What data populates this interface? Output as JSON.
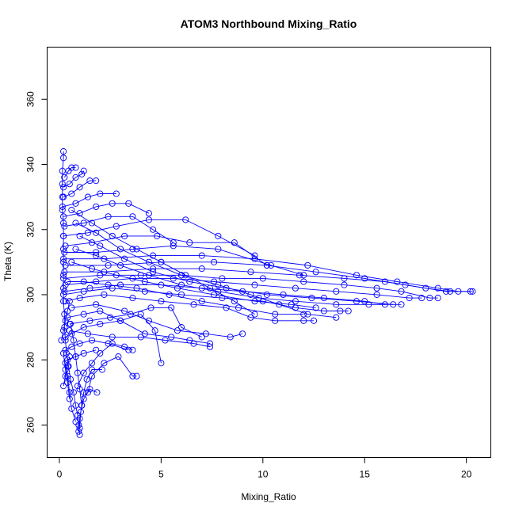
{
  "chart_data": {
    "type": "scatter",
    "title": "ATOM3 Northbound Mixing_Ratio",
    "xlabel": "Mixing_Ratio",
    "ylabel": "Theta (K)",
    "xlim": [
      -0.6,
      21.2
    ],
    "ylim": [
      250,
      376
    ],
    "x_ticks": [
      0,
      5,
      10,
      15,
      20
    ],
    "y_ticks": [
      260,
      280,
      300,
      320,
      340,
      360
    ],
    "x_tick_labels": [
      "0",
      "5",
      "10",
      "15",
      "20"
    ],
    "y_tick_labels": [
      "260",
      "280",
      "300",
      "320",
      "340",
      "360"
    ],
    "grid": false,
    "series_color": "#0000ff",
    "marker": "open-circle",
    "profiles": [
      [
        [
          1.0,
          257
        ],
        [
          0.95,
          260
        ],
        [
          0.9,
          263
        ],
        [
          0.8,
          266
        ],
        [
          0.7,
          270
        ],
        [
          0.55,
          274
        ],
        [
          0.45,
          278
        ],
        [
          0.35,
          282
        ],
        [
          0.3,
          286
        ],
        [
          0.25,
          290
        ],
        [
          0.25,
          294
        ],
        [
          0.2,
          298
        ],
        [
          0.2,
          302
        ],
        [
          0.2,
          306
        ],
        [
          0.2,
          310
        ],
        [
          0.2,
          314
        ],
        [
          0.2,
          318
        ],
        [
          0.2,
          322
        ],
        [
          0.15,
          326
        ],
        [
          0.15,
          330
        ],
        [
          0.15,
          334
        ],
        [
          0.15,
          338
        ],
        [
          0.2,
          342
        ],
        [
          0.2,
          344
        ]
      ],
      [
        [
          0.95,
          258
        ],
        [
          1.0,
          262
        ],
        [
          1.1,
          266
        ],
        [
          1.2,
          270
        ],
        [
          1.35,
          274
        ],
        [
          1.6,
          277
        ],
        [
          2.1,
          277
        ]
      ],
      [
        [
          1.0,
          259
        ],
        [
          1.05,
          264
        ],
        [
          1.2,
          268
        ],
        [
          1.5,
          271
        ],
        [
          1.85,
          270
        ]
      ],
      [
        [
          0.8,
          261
        ],
        [
          0.6,
          265
        ],
        [
          0.5,
          270
        ],
        [
          0.4,
          275
        ],
        [
          0.3,
          279
        ]
      ],
      [
        [
          1.1,
          266
        ],
        [
          1.0,
          271
        ],
        [
          0.9,
          276
        ],
        [
          0.8,
          281
        ],
        [
          0.7,
          286
        ],
        [
          0.55,
          291
        ]
      ],
      [
        [
          0.5,
          268
        ],
        [
          0.4,
          273
        ],
        [
          0.3,
          277
        ],
        [
          0.2,
          282
        ]
      ],
      [
        [
          1.4,
          270
        ],
        [
          1.6,
          275
        ],
        [
          2.2,
          279
        ],
        [
          2.9,
          281
        ],
        [
          3.6,
          275
        ],
        [
          3.8,
          275
        ]
      ],
      [
        [
          0.9,
          272
        ],
        [
          1.2,
          276
        ],
        [
          1.6,
          279
        ],
        [
          2.0,
          282
        ],
        [
          2.6,
          285
        ],
        [
          3.2,
          284
        ],
        [
          3.6,
          283
        ]
      ],
      [
        [
          0.3,
          287
        ],
        [
          0.6,
          288
        ],
        [
          1.2,
          290
        ],
        [
          2.0,
          291
        ],
        [
          3.0,
          292
        ],
        [
          4.0,
          294
        ],
        [
          4.7,
          289
        ],
        [
          5.0,
          279
        ]
      ],
      [
        [
          0.5,
          291
        ],
        [
          1.5,
          292
        ],
        [
          2.5,
          293
        ],
        [
          3.5,
          294
        ],
        [
          4.5,
          296
        ],
        [
          5.5,
          296
        ],
        [
          6.0,
          290
        ],
        [
          7.0,
          287
        ]
      ],
      [
        [
          0.4,
          293
        ],
        [
          1.2,
          294
        ],
        [
          2.0,
          295
        ],
        [
          3.0,
          292
        ],
        [
          4.2,
          288
        ],
        [
          5.5,
          287
        ],
        [
          6.4,
          286
        ],
        [
          7.4,
          285
        ]
      ],
      [
        [
          0.6,
          296
        ],
        [
          1.8,
          297
        ],
        [
          3.2,
          295
        ],
        [
          4.4,
          292
        ],
        [
          5.8,
          289
        ],
        [
          7.2,
          288
        ],
        [
          8.4,
          287
        ],
        [
          9.0,
          288
        ]
      ],
      [
        [
          0.3,
          298
        ],
        [
          1.0,
          299
        ],
        [
          2.2,
          300
        ],
        [
          3.6,
          299
        ],
        [
          5.0,
          298
        ],
        [
          6.6,
          297
        ],
        [
          8.2,
          296
        ],
        [
          9.4,
          293
        ],
        [
          10.6,
          292
        ],
        [
          12.0,
          292
        ],
        [
          12.5,
          292
        ]
      ],
      [
        [
          0.2,
          300
        ],
        [
          1.2,
          301
        ],
        [
          2.6,
          302
        ],
        [
          4.2,
          301
        ],
        [
          6.0,
          300
        ],
        [
          8.0,
          299
        ],
        [
          10.0,
          298
        ],
        [
          11.6,
          296
        ],
        [
          13.0,
          295
        ],
        [
          13.8,
          295
        ],
        [
          14.2,
          295
        ]
      ],
      [
        [
          0.25,
          301
        ],
        [
          1.5,
          302
        ],
        [
          3.0,
          303
        ],
        [
          5.0,
          303
        ],
        [
          7.0,
          302
        ],
        [
          9.0,
          301
        ],
        [
          11.0,
          300
        ],
        [
          13.0,
          299
        ],
        [
          15.0,
          298
        ],
        [
          16.0,
          297
        ]
      ],
      [
        [
          0.3,
          303
        ],
        [
          1.8,
          304
        ],
        [
          3.6,
          305
        ],
        [
          5.6,
          305
        ],
        [
          7.6,
          304
        ],
        [
          9.6,
          303
        ],
        [
          11.6,
          302
        ],
        [
          13.6,
          301
        ],
        [
          15.6,
          300
        ],
        [
          17.2,
          299
        ],
        [
          17.8,
          299
        ]
      ],
      [
        [
          0.2,
          305
        ],
        [
          2.0,
          306
        ],
        [
          4.0,
          306
        ],
        [
          6.0,
          306
        ],
        [
          8.0,
          305
        ],
        [
          10.0,
          305
        ],
        [
          12.0,
          304
        ],
        [
          14.0,
          303
        ],
        [
          15.6,
          302
        ],
        [
          16.8,
          301
        ],
        [
          18.2,
          299
        ],
        [
          18.6,
          299
        ]
      ],
      [
        [
          0.25,
          307
        ],
        [
          2.2,
          307
        ],
        [
          4.6,
          308
        ],
        [
          7.0,
          308
        ],
        [
          9.4,
          307
        ],
        [
          11.8,
          306
        ],
        [
          14.0,
          305
        ],
        [
          16.0,
          304
        ],
        [
          18.0,
          302
        ],
        [
          19.2,
          301
        ],
        [
          20.2,
          301
        ]
      ],
      [
        [
          0.3,
          309
        ],
        [
          2.4,
          309
        ],
        [
          5.0,
          310
        ],
        [
          7.6,
          310
        ],
        [
          10.2,
          309
        ],
        [
          12.6,
          307
        ],
        [
          15.0,
          305
        ],
        [
          17.0,
          303
        ],
        [
          19.0,
          301
        ],
        [
          20.3,
          301
        ]
      ],
      [
        [
          0.2,
          311
        ],
        [
          2.2,
          311
        ],
        [
          4.6,
          312
        ],
        [
          7.0,
          312
        ],
        [
          9.6,
          311
        ],
        [
          12.2,
          309
        ],
        [
          14.6,
          306
        ],
        [
          16.6,
          304
        ],
        [
          18.6,
          302
        ],
        [
          19.6,
          301
        ]
      ],
      [
        [
          0.25,
          313
        ],
        [
          1.8,
          313
        ],
        [
          3.6,
          314
        ],
        [
          5.6,
          315
        ],
        [
          7.8,
          314
        ],
        [
          10.4,
          309
        ],
        [
          12.0,
          306
        ]
      ],
      [
        [
          0.3,
          315
        ],
        [
          1.6,
          316
        ],
        [
          3.2,
          318
        ],
        [
          4.8,
          318
        ],
        [
          6.4,
          316
        ],
        [
          8.6,
          316
        ],
        [
          10.2,
          309
        ]
      ],
      [
        [
          0.2,
          318
        ],
        [
          1.4,
          319
        ],
        [
          2.8,
          321
        ],
        [
          4.4,
          323
        ],
        [
          6.2,
          323
        ],
        [
          7.8,
          318
        ],
        [
          9.6,
          312
        ]
      ],
      [
        [
          0.25,
          321
        ],
        [
          1.2,
          322
        ],
        [
          2.4,
          324
        ],
        [
          3.6,
          324
        ],
        [
          4.6,
          320
        ],
        [
          5.6,
          316
        ]
      ],
      [
        [
          0.2,
          324
        ],
        [
          1.0,
          325
        ],
        [
          1.8,
          327
        ],
        [
          2.6,
          328
        ],
        [
          3.4,
          328
        ],
        [
          4.4,
          325
        ]
      ],
      [
        [
          0.15,
          327
        ],
        [
          0.8,
          328
        ],
        [
          1.4,
          330
        ],
        [
          2.0,
          331
        ],
        [
          2.8,
          331
        ]
      ],
      [
        [
          0.2,
          330
        ],
        [
          0.6,
          331
        ],
        [
          1.0,
          333
        ],
        [
          1.5,
          335
        ],
        [
          1.8,
          335
        ]
      ],
      [
        [
          0.2,
          333
        ],
        [
          0.5,
          334
        ],
        [
          0.8,
          336
        ],
        [
          1.1,
          337
        ],
        [
          1.2,
          338
        ]
      ],
      [
        [
          0.25,
          336
        ],
        [
          0.45,
          338
        ],
        [
          0.6,
          339
        ],
        [
          0.8,
          339
        ]
      ],
      [
        [
          0.3,
          283
        ],
        [
          0.6,
          284
        ],
        [
          1.0,
          285
        ],
        [
          1.6,
          286
        ],
        [
          2.4,
          285
        ],
        [
          3.4,
          283
        ]
      ],
      [
        [
          0.4,
          280
        ],
        [
          0.8,
          281
        ],
        [
          1.2,
          282
        ],
        [
          1.8,
          283
        ]
      ],
      [
        [
          0.5,
          289
        ],
        [
          1.4,
          288
        ],
        [
          2.6,
          287
        ],
        [
          4.0,
          287
        ],
        [
          5.2,
          286
        ],
        [
          6.6,
          285
        ],
        [
          7.4,
          284
        ]
      ],
      [
        [
          0.4,
          304
        ],
        [
          1.2,
          304
        ],
        [
          2.4,
          303
        ],
        [
          3.8,
          302
        ],
        [
          5.4,
          300
        ],
        [
          7.0,
          298
        ],
        [
          8.8,
          296
        ],
        [
          10.6,
          294
        ],
        [
          12.0,
          294
        ]
      ],
      [
        [
          0.6,
          310
        ],
        [
          1.6,
          308
        ],
        [
          2.8,
          306
        ],
        [
          4.2,
          304
        ],
        [
          5.8,
          302
        ],
        [
          7.6,
          300
        ],
        [
          9.6,
          298
        ],
        [
          11.4,
          297
        ],
        [
          12.6,
          296
        ]
      ],
      [
        [
          0.8,
          314
        ],
        [
          1.8,
          312
        ],
        [
          3.0,
          309
        ],
        [
          4.4,
          306
        ],
        [
          6.0,
          303
        ],
        [
          7.8,
          301
        ],
        [
          9.8,
          299
        ],
        [
          11.6,
          298
        ],
        [
          13.6,
          297
        ],
        [
          15.2,
          297
        ],
        [
          16.8,
          297
        ]
      ],
      [
        [
          1.0,
          318
        ],
        [
          2.0,
          315
        ],
        [
          3.2,
          311
        ],
        [
          4.6,
          307
        ],
        [
          6.4,
          304
        ],
        [
          8.2,
          302
        ],
        [
          10.2,
          300
        ],
        [
          12.4,
          299
        ],
        [
          14.6,
          298
        ],
        [
          16.4,
          297
        ]
      ],
      [
        [
          0.8,
          322
        ],
        [
          1.8,
          319
        ],
        [
          3.0,
          314
        ],
        [
          4.4,
          310
        ],
        [
          6.0,
          306
        ],
        [
          7.8,
          303
        ],
        [
          9.4,
          300
        ],
        [
          10.8,
          297
        ],
        [
          12.2,
          294
        ],
        [
          13.6,
          293
        ]
      ],
      [
        [
          0.6,
          326
        ],
        [
          1.6,
          322
        ],
        [
          2.6,
          318
        ],
        [
          3.8,
          314
        ],
        [
          5.0,
          310
        ],
        [
          6.2,
          306
        ],
        [
          7.4,
          302
        ],
        [
          8.6,
          298
        ],
        [
          9.6,
          294
        ]
      ],
      [
        [
          0.2,
          272
        ],
        [
          0.3,
          275
        ],
        [
          0.4,
          278
        ],
        [
          0.5,
          281
        ]
      ],
      [
        [
          0.1,
          286
        ],
        [
          0.2,
          289
        ],
        [
          0.3,
          292
        ],
        [
          0.4,
          295
        ],
        [
          0.5,
          298
        ]
      ]
    ]
  }
}
